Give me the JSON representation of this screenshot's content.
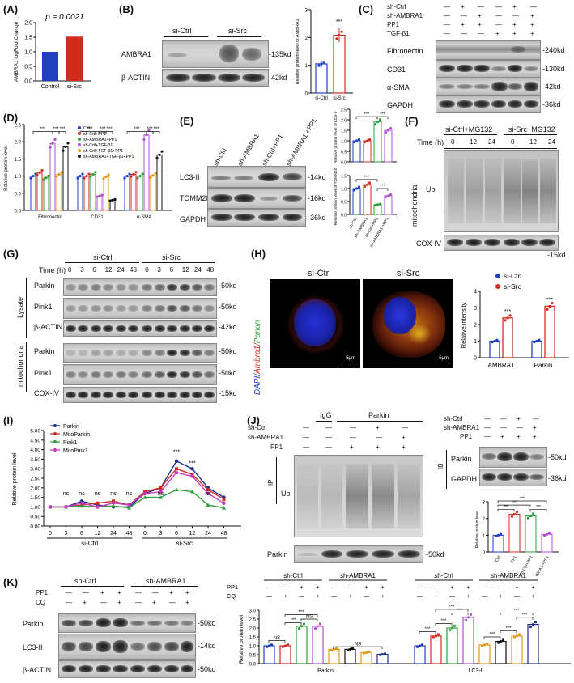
{
  "panels": {
    "A": {
      "label": "(A)",
      "pvalue": "p = 0.0021",
      "ylabel": "AMBRA1 logFold Change"
    },
    "B": {
      "label": "(B)",
      "groups": [
        "si-Ctrl",
        "si-Src"
      ],
      "rows": [
        "AMBRA1",
        "β-ACTIN"
      ],
      "mw": [
        "-135kd",
        "-42kd"
      ],
      "ylabel": "Relative protein level of AMBRA1",
      "sig": "***"
    },
    "C": {
      "label": "(C)",
      "conditions": [
        "sh-Ctrl",
        "sh-AMBRA1",
        "PP1",
        "TGF-β1"
      ],
      "signs": [
        [
          "—",
          "+",
          "—",
          "—",
          "+",
          "—"
        ],
        [
          "—",
          "—",
          "+",
          "—",
          "—",
          "+"
        ],
        [
          "—",
          "+",
          "+",
          "—",
          "+",
          "+"
        ],
        [
          "—",
          "—",
          "—",
          "+",
          "+",
          "+"
        ]
      ],
      "rows": [
        "Fibronectin",
        "CD31",
        "α-SMA",
        "GAPDH"
      ],
      "mw": [
        "-240kd",
        "-130kd",
        "-42kd",
        "-36kd"
      ]
    },
    "D": {
      "label": "(D)",
      "ylabel": "Relative protein level",
      "legend": [
        "Crtl",
        "sh-Crtl+PP1",
        "sh-AMBRA1+PP1",
        "sh-Crtl+TGF-β1",
        "sh-Crtl+TGF-β1+PP1",
        "sh-AMBRA1+TGF-β1+PP1"
      ],
      "groups": [
        "Fibronectin",
        "CD31",
        "α-SMA"
      ]
    },
    "E": {
      "label": "(E)",
      "lanes": [
        "sh-Ctrl",
        "sh-AMBRA1",
        "sh-Ctrl+PP1",
        "sh-AMBRA1 +PP1"
      ],
      "rows": [
        "LC3-II",
        "TOMM20",
        "GAPDH"
      ],
      "mw": [
        "-14kd",
        "-16kd",
        "-36kd"
      ],
      "ylabel_top": "Relative protein level of LC3-II",
      "ylabel_bottom": "Relative protein level of TOMM20",
      "xlabels": [
        "sh-Ctrl",
        "sh-AMBRA1",
        "sh-Ctrl+PP1",
        "sh-AMBRA1 +PP1"
      ]
    },
    "F": {
      "label": "(F)",
      "groups": [
        "si-Ctrl+MG132",
        "si-Src+MG132"
      ],
      "time_label": "Time (h)",
      "times": [
        "0",
        "12",
        "24",
        "0",
        "12",
        "24"
      ],
      "side": "mitochondria",
      "rows": [
        "Ub",
        "COX-IV"
      ],
      "mw": [
        "-15kd"
      ]
    },
    "G": {
      "label": "(G)",
      "groups": [
        "si-Ctrl",
        "si-Src"
      ],
      "time_label": "Time (h)",
      "times": [
        "0",
        "3",
        "6",
        "12",
        "24",
        "48",
        "0",
        "3",
        "6",
        "12",
        "24",
        "48"
      ],
      "sections": [
        "Lysate",
        "mitochondria"
      ],
      "rows": [
        "Parkin",
        "Pink1",
        "β-ACTIN",
        "Parkin",
        "Pink1",
        "COX-IV"
      ],
      "mw": [
        "-50kd",
        "-50kd",
        "-42kd",
        "-50kd",
        "-50kd",
        "-15kd"
      ]
    },
    "H": {
      "label": "(H)",
      "images": [
        "si-Ctrl",
        "si-Src"
      ],
      "stain_dapi": "DAPI/",
      "stain_ambra": "Ambra1/",
      "stain_parkin": "Parkin",
      "scale": "5μm",
      "legend": [
        "si-Ctrl",
        "si-Src"
      ],
      "ylabel": "Relative intensity",
      "xlabels": [
        "AMBRA1",
        "Parkin"
      ],
      "sig": "***"
    },
    "I": {
      "label": "(I)",
      "legend": [
        "Parkin",
        "MitoParkin",
        "Pink1",
        "MitoPink1"
      ],
      "ylabel": "Relative protein level",
      "xgroups": [
        "si-Ctrl",
        "si-Src"
      ],
      "ns": "ns",
      "sig": "***"
    },
    "J": {
      "label": "(J)",
      "top": [
        "IgG",
        "Parkin"
      ],
      "conditions": [
        "sh-Ctrl",
        "sh-AMBRA1",
        "PP1"
      ],
      "signs": [
        [
          "—",
          "—",
          "—",
          "+",
          "—"
        ],
        [
          "—",
          "—",
          "—",
          "—",
          "+"
        ],
        [
          "—",
          "—",
          "+",
          "+",
          "+"
        ]
      ],
      "ip": "IP",
      "ip_row": "Ub",
      "bottom_row": "Parkin",
      "bottom_mw": "-50kd",
      "ib": {
        "conditions": [
          "sh-Ctrl",
          "sh-AMBRA1",
          "PP1"
        ],
        "signs": [
          [
            "—",
            "—",
            "+",
            "—"
          ],
          [
            "—",
            "—",
            "—",
            "+"
          ],
          [
            "—",
            "+",
            "+",
            "+"
          ]
        ],
        "side": "IB",
        "rows": [
          "Parkin",
          "GAPDH"
        ],
        "mw": [
          "-50kd",
          "-36kd"
        ]
      },
      "bar": {
        "ylabel": "Relative protein level",
        "xlabels": [
          "Ctrl",
          "PP1",
          "sh-Ctrl+PP1",
          "sh-AMBRA1 +PP1"
        ]
      }
    },
    "K": {
      "label": "(K)",
      "groups": [
        "sh-Ctrl",
        "sh-AMBRA1"
      ],
      "conditions": [
        "PP1",
        "CQ"
      ],
      "signs": [
        [
          "—",
          "—",
          "+",
          "+",
          "—",
          "—",
          "+",
          "+"
        ],
        [
          "—",
          "+",
          "—",
          "+",
          "—",
          "+",
          "—",
          "+"
        ]
      ],
      "rows": [
        "Parkin",
        "LC3-II",
        "β-ACTIN"
      ],
      "mw": [
        "-50kd",
        "-14kd",
        "-50kd"
      ],
      "chart_top_groups": [
        "sh-Ctrl",
        "sh-AMBRA1",
        "sh-Ctrl",
        "sh-AMBRA1"
      ],
      "chart_conditions": [
        "PP1",
        "CQ"
      ],
      "chart_signs": [
        [
          "—",
          "—",
          "+",
          "+",
          "—",
          "—",
          "+",
          "+",
          "—",
          "—",
          "+",
          "+",
          "—",
          "—",
          "+",
          "+"
        ],
        [
          "—",
          "+",
          "—",
          "+",
          "—",
          "+",
          "—",
          "+",
          "—",
          "+",
          "—",
          "+",
          "—",
          "+",
          "—",
          "+"
        ]
      ],
      "ylabel": "Relative protein level",
      "xgroups": [
        "Parkin",
        "LC3-II"
      ],
      "ns": "NS",
      "sig": "***"
    }
  },
  "colors": {
    "blue": "#1f3fbf",
    "red": "#d22b1e",
    "green": "#2e9e3a",
    "orange": "#e09a1a",
    "purple": "#b04fd0",
    "black": "#111111",
    "navy": "#1d2f8c",
    "magenta": "#c43cc4"
  },
  "chart_data": [
    {
      "type": "bar",
      "panel": "A",
      "categories": [
        "Control",
        "si-Src"
      ],
      "values": [
        1.0,
        1.52
      ],
      "ylim": [
        0.0,
        2.0
      ],
      "yticks": [
        "0.0",
        "0.5",
        "1.0",
        "1.5",
        "2.0"
      ]
    },
    {
      "type": "bar",
      "panel": "B",
      "categories": [
        "si-Ctrl",
        "si-Src"
      ],
      "values": [
        1.05,
        2.08
      ],
      "ylim": [
        0,
        3
      ],
      "yticks": [
        "0",
        "1",
        "2",
        "3"
      ]
    },
    {
      "type": "bar",
      "panel": "D",
      "categories": [
        "Fibronectin",
        "CD31",
        "α-SMA"
      ],
      "ylim": [
        0.0,
        2.5
      ],
      "yticks": [
        "0.0",
        "0.5",
        "1.0",
        "1.5",
        "2.0",
        "2.5"
      ],
      "series": [
        {
          "name": "Crtl",
          "values": [
            1.0,
            1.0,
            1.0
          ]
        },
        {
          "name": "sh-Crtl+PP1",
          "values": [
            1.1,
            1.0,
            1.05
          ]
        },
        {
          "name": "sh-AMBRA1+PP1",
          "values": [
            0.95,
            1.05,
            1.0
          ]
        },
        {
          "name": "sh-Crtl+TGF-β1",
          "values": [
            1.95,
            0.42,
            2.2
          ]
        },
        {
          "name": "sh-Crtl+TGF-β1+PP1",
          "values": [
            1.05,
            0.98,
            1.02
          ]
        },
        {
          "name": "sh-AMBRA1+TGF-β1+PP1",
          "values": [
            1.85,
            0.3,
            1.62
          ]
        }
      ]
    },
    {
      "type": "bar",
      "panel": "E-top",
      "categories": [
        "sh-Ctrl",
        "sh-AMBRA1",
        "sh-Ctrl+PP1",
        "sh-AMBRA1 +PP1"
      ],
      "values": [
        1.0,
        1.0,
        1.9,
        1.5
      ],
      "ylim": [
        0.0,
        2.5
      ],
      "yticks": [
        "0.0",
        "0.5",
        "1.0",
        "1.5",
        "2.0",
        "2.5"
      ]
    },
    {
      "type": "bar",
      "panel": "E-bottom",
      "categories": [
        "sh-Ctrl",
        "sh-AMBRA1",
        "sh-Ctrl+PP1",
        "sh-AMBRA1 +PP1"
      ],
      "values": [
        1.0,
        1.15,
        0.38,
        0.72
      ],
      "ylim": [
        0.0,
        1.5
      ],
      "yticks": [
        "0.0",
        "0.5",
        "1.0",
        "1.5"
      ]
    },
    {
      "type": "bar",
      "panel": "H",
      "categories": [
        "AMBRA1",
        "Parkin"
      ],
      "series": [
        {
          "name": "si-Ctrl",
          "values": [
            1.0,
            1.0
          ]
        },
        {
          "name": "si-Src",
          "values": [
            2.4,
            3.1
          ]
        }
      ],
      "ylim": [
        0,
        4
      ],
      "yticks": [
        "0",
        "1",
        "2",
        "3",
        "4"
      ]
    },
    {
      "type": "line",
      "panel": "I",
      "x": [
        "0",
        "3",
        "6",
        "12",
        "24",
        "48",
        "0",
        "3",
        "6",
        "12",
        "24",
        "48"
      ],
      "ylim": [
        0.0,
        5.0
      ],
      "yticks": [
        "0.00",
        "0.50",
        "1.00",
        "1.50",
        "2.00",
        "2.50",
        "3.00",
        "3.50",
        "4.00",
        "4.50",
        "5.00"
      ],
      "series": [
        {
          "name": "Parkin",
          "values": [
            1.0,
            1.0,
            1.3,
            1.1,
            1.0,
            1.0,
            1.7,
            2.0,
            3.4,
            3.0,
            2.0,
            1.5
          ]
        },
        {
          "name": "MitoParkin",
          "values": [
            1.0,
            1.0,
            1.1,
            1.2,
            1.3,
            1.1,
            1.8,
            2.0,
            3.0,
            2.7,
            1.9,
            1.4
          ]
        },
        {
          "name": "Pink1",
          "values": [
            1.0,
            1.0,
            1.05,
            1.0,
            1.05,
            0.95,
            1.5,
            1.5,
            1.9,
            1.8,
            1.1,
            0.95
          ]
        },
        {
          "name": "MitoPink1",
          "values": [
            1.0,
            1.0,
            1.2,
            1.0,
            1.2,
            1.1,
            1.7,
            1.8,
            2.8,
            2.6,
            1.7,
            1.2
          ]
        }
      ]
    },
    {
      "type": "bar",
      "panel": "J",
      "categories": [
        "Ctrl",
        "PP1",
        "sh-Ctrl+PP1",
        "sh-AMBRA1 +PP1"
      ],
      "values": [
        1.0,
        2.25,
        2.15,
        1.05
      ],
      "ylim": [
        0,
        3
      ],
      "yticks": [
        "0",
        "1",
        "2",
        "3"
      ]
    },
    {
      "type": "bar",
      "panel": "K",
      "categories": [
        "1",
        "2",
        "3",
        "4",
        "5",
        "6",
        "7",
        "8",
        "9",
        "10",
        "11",
        "12",
        "13",
        "14",
        "15",
        "16"
      ],
      "values": [
        1.0,
        1.0,
        2.1,
        2.1,
        0.8,
        0.8,
        0.62,
        0.52,
        1.0,
        1.55,
        2.0,
        2.6,
        1.05,
        1.25,
        1.55,
        2.2
      ],
      "ylim": [
        0.0,
        3.0
      ],
      "yticks": [
        "0.0",
        "0.5",
        "1.0",
        "1.5",
        "2.0",
        "2.5",
        "3.0"
      ]
    }
  ]
}
